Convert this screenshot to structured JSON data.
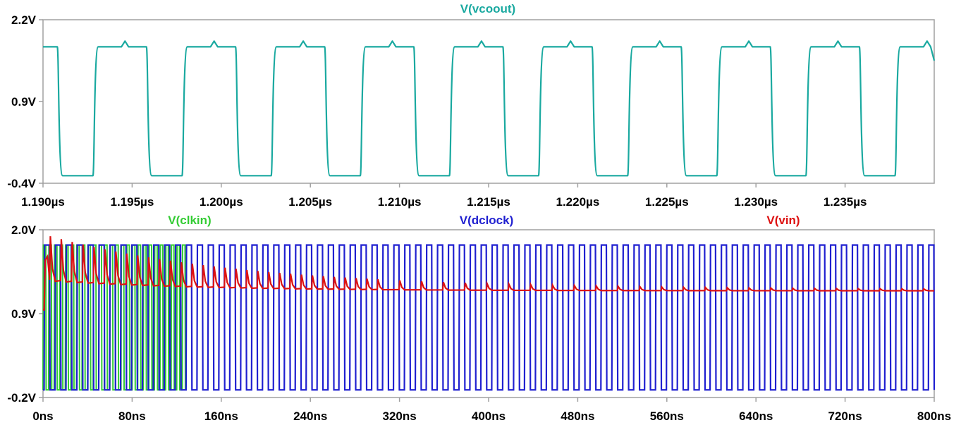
{
  "chart_data": [
    {
      "type": "line",
      "x_unit": "µs",
      "xlim": [
        1.19,
        1.24
      ],
      "ylim": [
        -0.4,
        2.2
      ],
      "x_ticks": [
        "1.190µs",
        "1.195µs",
        "1.200µs",
        "1.205µs",
        "1.210µs",
        "1.215µs",
        "1.220µs",
        "1.225µs",
        "1.230µs",
        "1.235µs"
      ],
      "y_ticks": [
        "2.2V",
        "0.9V",
        "-0.4V"
      ],
      "y_tick_values": [
        2.2,
        0.9,
        -0.4
      ],
      "x_tick_values": [
        1.19,
        1.195,
        1.2,
        1.205,
        1.21,
        1.215,
        1.22,
        1.225,
        1.23,
        1.235
      ],
      "series": [
        {
          "name": "V(vcoout)",
          "color": "#1aa9a0",
          "waveform": "square",
          "high": 1.77,
          "low": -0.28,
          "period_us": 0.005,
          "rise_times_us": [
            1.1928,
            1.1978,
            1.2028,
            1.2078,
            1.2128,
            1.2178,
            1.2228,
            1.2278,
            1.2328,
            1.2378
          ],
          "fall_times_us": [
            1.1908,
            1.1958,
            1.2008,
            1.2058,
            1.2108,
            1.2158,
            1.2208,
            1.2258,
            1.2308,
            1.2358
          ]
        }
      ]
    },
    {
      "type": "line",
      "x_unit": "ns",
      "xlim": [
        0,
        800
      ],
      "ylim": [
        -0.2,
        2.0
      ],
      "x_ticks": [
        "0ns",
        "80ns",
        "160ns",
        "240ns",
        "320ns",
        "400ns",
        "480ns",
        "560ns",
        "640ns",
        "720ns",
        "800ns"
      ],
      "x_tick_values": [
        0,
        80,
        160,
        240,
        320,
        400,
        480,
        560,
        640,
        720,
        800
      ],
      "y_ticks": [
        "2.0V",
        "0.9V",
        "-0.2V"
      ],
      "y_tick_values": [
        2.0,
        0.9,
        -0.2
      ],
      "series": [
        {
          "name": "V(clkin)",
          "color": "#33cc33",
          "waveform": "square",
          "high": 1.8,
          "low": -0.1,
          "period_ns": 5.0,
          "duration_ns": 130
        },
        {
          "name": "V(dclock)",
          "color": "#1f1fd0",
          "waveform": "square",
          "high": 1.8,
          "low": -0.1,
          "period_ns": 9.8
        },
        {
          "name": "V(vin)",
          "color": "#dd1111",
          "waveform": "settling",
          "start": 0.95,
          "peak": 1.65,
          "final": 1.2
        }
      ]
    }
  ]
}
